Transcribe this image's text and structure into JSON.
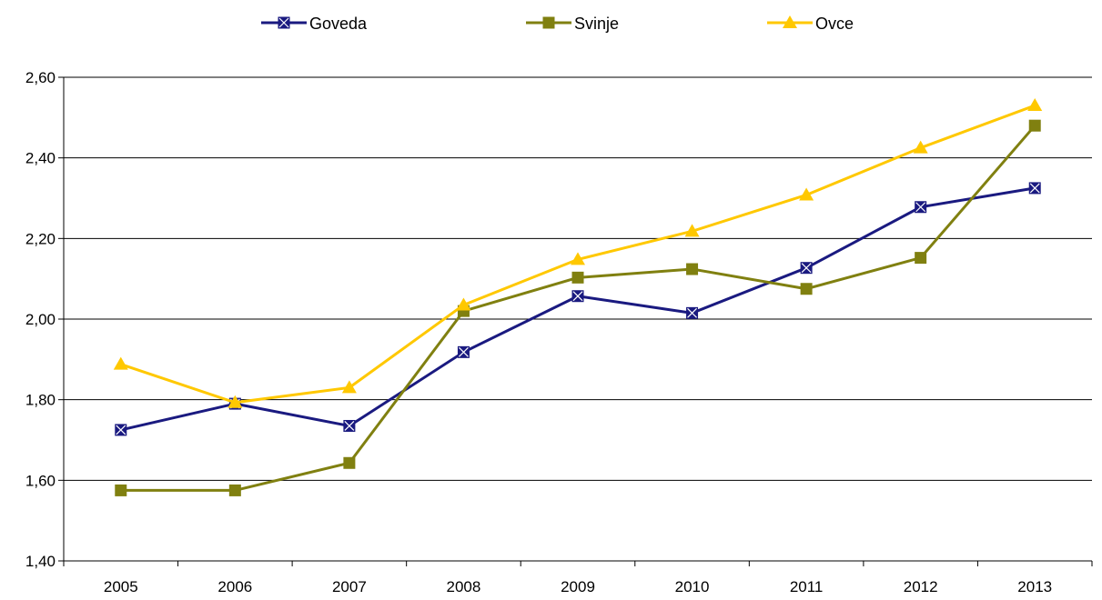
{
  "chart_data": {
    "type": "line",
    "title": "",
    "xlabel": "",
    "ylabel": "",
    "categories": [
      "2005",
      "2006",
      "2007",
      "2008",
      "2009",
      "2010",
      "2011",
      "2012",
      "2013"
    ],
    "ylim": [
      1.4,
      2.6
    ],
    "y_ticks": [
      "1,40",
      "1,60",
      "1,80",
      "2,00",
      "2,20",
      "2,40",
      "2,60"
    ],
    "grid": true,
    "legend_position": "top",
    "series": [
      {
        "name": "Goveda",
        "color": "#1a1a80",
        "marker": "square-x",
        "values": [
          1.725,
          1.79,
          1.735,
          1.918,
          2.057,
          2.015,
          2.127,
          2.278,
          2.325
        ]
      },
      {
        "name": "Svinje",
        "color": "#808010",
        "marker": "square",
        "values": [
          1.575,
          1.575,
          1.643,
          2.02,
          2.103,
          2.124,
          2.075,
          2.152,
          2.48
        ]
      },
      {
        "name": "Ovce",
        "color": "#ffc800",
        "marker": "triangle",
        "values": [
          1.888,
          1.793,
          1.83,
          2.035,
          2.148,
          2.218,
          2.308,
          2.425,
          2.53
        ]
      }
    ]
  }
}
